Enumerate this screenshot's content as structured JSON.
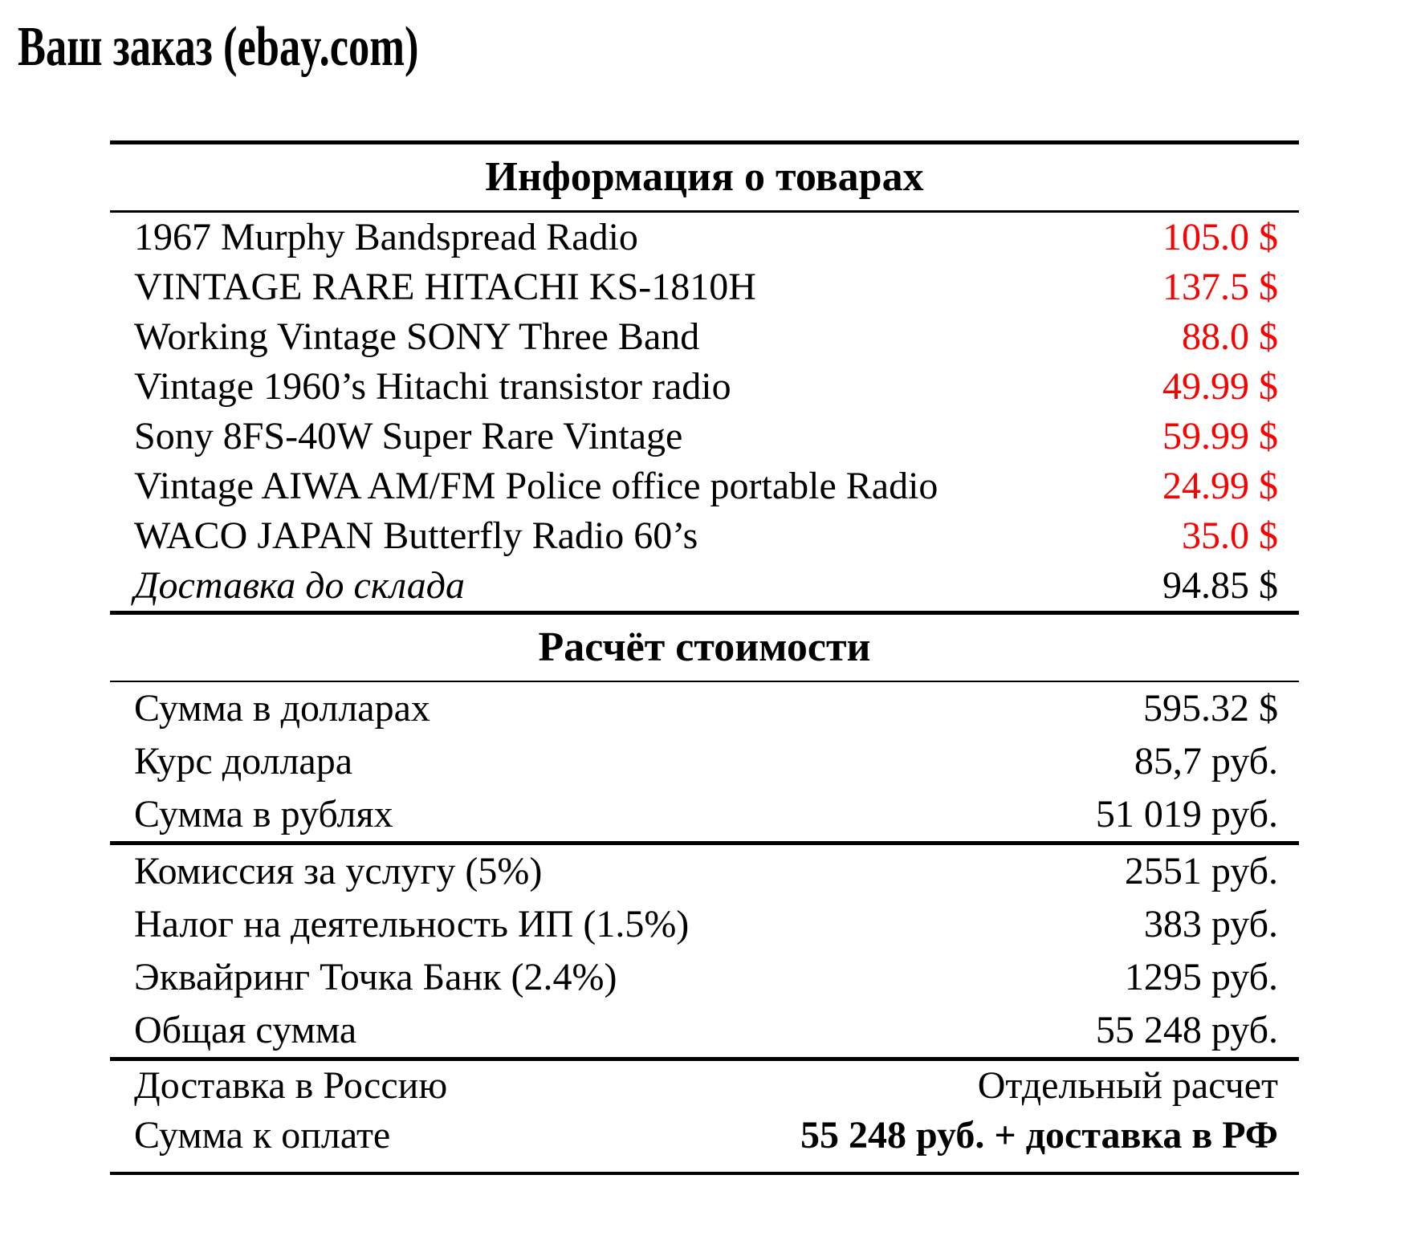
{
  "page": {
    "title": "Ваш заказ (ebay.com)"
  },
  "colors": {
    "price_red": "#fa0000",
    "text": "#000000",
    "rule": "#000000",
    "background": "#ffffff"
  },
  "products_section": {
    "header": "Информация о товарах",
    "items": [
      {
        "name": "1967 Murphy Bandspread Radio",
        "price": "105.0 $"
      },
      {
        "name": "VINTAGE RARE HITACHI KS-1810H",
        "price": "137.5 $"
      },
      {
        "name": "Working Vintage SONY Three Band",
        "price": "88.0 $"
      },
      {
        "name": "Vintage 1960’s Hitachi transistor radio",
        "price": "49.99 $"
      },
      {
        "name": "Sony 8FS-40W Super Rare Vintage",
        "price": "59.99 $"
      },
      {
        "name": "Vintage AIWA AM/FM Police office portable Radio",
        "price": "24.99 $"
      },
      {
        "name": "WACO JAPAN Butterfly Radio 60’s",
        "price": "35.0 $"
      },
      {
        "name": "Доставка до склада",
        "price": "94.85 $"
      }
    ]
  },
  "calc_section": {
    "header": "Расчёт стоимости",
    "subtotal_rows": [
      {
        "label": "Сумма в долларах",
        "value": "595.32 $"
      },
      {
        "label": "Курс доллара",
        "value": "85,7 руб."
      },
      {
        "label": "Сумма в рублях",
        "value": "51 019 руб."
      }
    ],
    "fees_rows": [
      {
        "label": "Комиссия за услугу (5%)",
        "value": "2551 руб."
      },
      {
        "label": "Налог на деятельность ИП (1.5%)",
        "value": "383 руб."
      },
      {
        "label": "Эквайринг Точка Банк (2.4%)",
        "value": "1295 руб."
      },
      {
        "label": "Общая сумма",
        "value": "55 248 руб."
      }
    ],
    "final_rows": [
      {
        "label": "Доставка в Россию",
        "value": "Отдельный расчет"
      },
      {
        "label": "Сумма к оплате",
        "value": "55 248 руб. + доставка в РФ"
      }
    ]
  }
}
